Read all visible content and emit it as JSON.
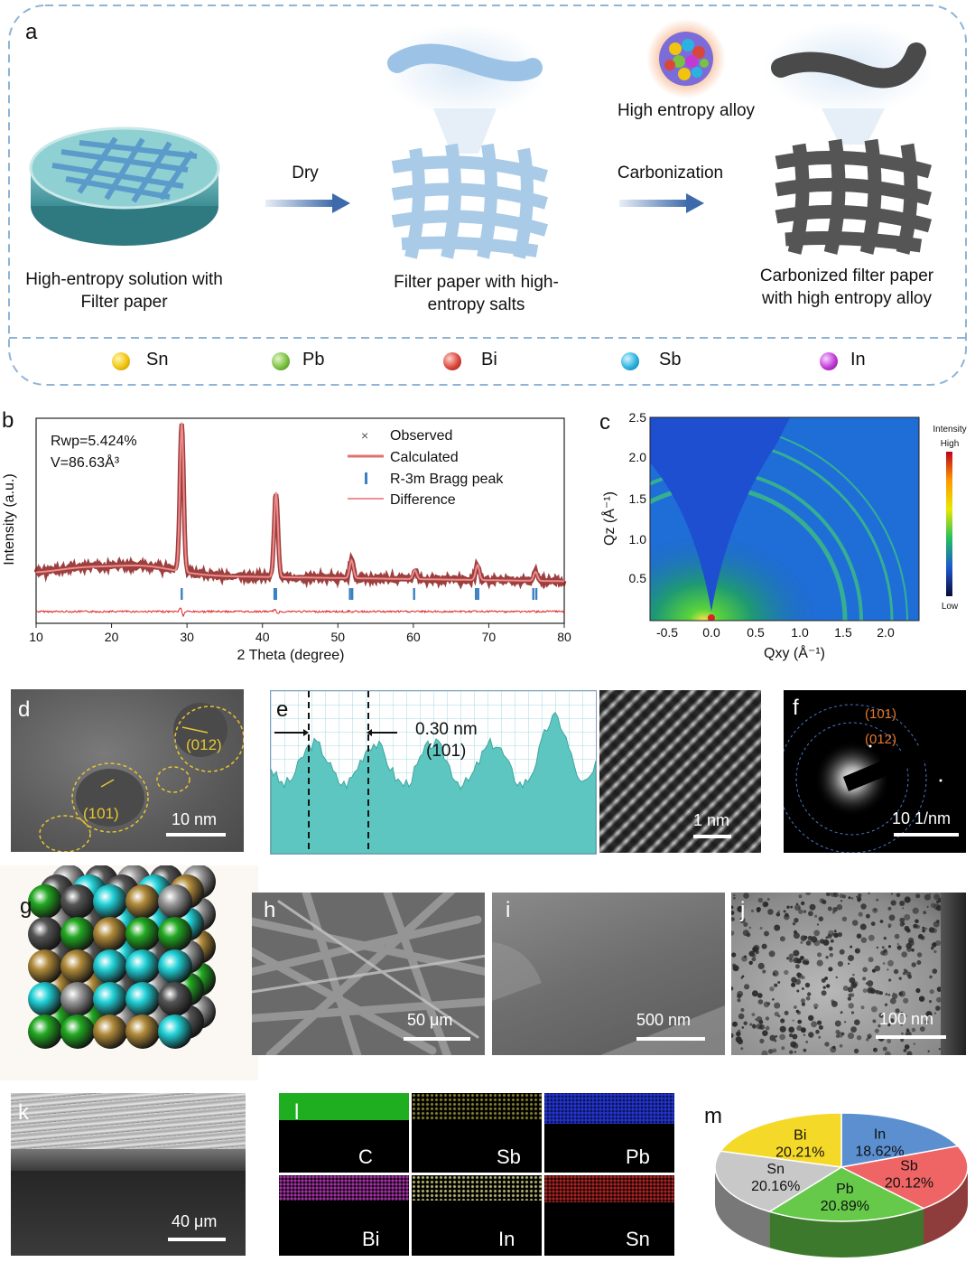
{
  "panel_labels": {
    "a": "a",
    "b": "b",
    "c": "c",
    "d": "d",
    "e": "e",
    "f": "f",
    "g": "g",
    "h": "h",
    "i": "i",
    "j": "j",
    "k": "k",
    "l": "l",
    "m": "m"
  },
  "schematic": {
    "step1_caption_1": "High-entropy solution with",
    "step1_caption_2": "Filter paper",
    "arrow1_label": "Dry",
    "step2_caption_1": "Filter paper with high-",
    "step2_caption_2": "entropy salts",
    "arrow2_label": "Carbonization",
    "hea_label": "High entropy alloy",
    "step3_caption_1": "Carbonized filter paper",
    "step3_caption_2": "with  high entropy alloy",
    "legend": [
      {
        "label": "Sn",
        "color": "#f1c40f"
      },
      {
        "label": "Pb",
        "color": "#7bc142"
      },
      {
        "label": "Bi",
        "color": "#d9463b"
      },
      {
        "label": "Sb",
        "color": "#2ab3e0"
      },
      {
        "label": "In",
        "color": "#c13ad6"
      }
    ]
  },
  "xrd": {
    "rwp": "Rwp=5.424%",
    "volume": "V=86.63Å³",
    "legend_observed": "Observed",
    "legend_calculated": "Calculated",
    "legend_bragg": "R-3m Bragg peak",
    "legend_difference": "Difference"
  },
  "chart_data": [
    {
      "type": "line",
      "panel": "b",
      "xlabel": "2 Theta (degree)",
      "ylabel": "Intensity (a.u.)",
      "xlim": [
        10,
        80
      ],
      "xticks": [
        "10",
        "20",
        "30",
        "40",
        "50",
        "60",
        "70",
        "80"
      ],
      "peaks": [
        {
          "x": 29.3,
          "height": 1.0
        },
        {
          "x": 41.8,
          "height": 0.57
        },
        {
          "x": 51.8,
          "height": 0.12
        },
        {
          "x": 60.2,
          "height": 0.06
        },
        {
          "x": 68.5,
          "height": 0.1
        },
        {
          "x": 76.2,
          "height": 0.06
        }
      ],
      "bragg_positions": [
        29.3,
        41.6,
        41.8,
        51.6,
        51.9,
        60.1,
        68.3,
        68.6,
        75.9,
        76.3
      ]
    },
    {
      "type": "heatmap",
      "panel": "c",
      "xlabel": "Qxy (Å⁻¹)",
      "ylabel": "Qz (Å⁻¹)",
      "xticks": [
        "-0.5",
        "0.0",
        "0.5",
        "1.0",
        "1.5",
        "2.0"
      ],
      "yticks": [
        "0.5",
        "1.0",
        "1.5",
        "2.0",
        "2.5"
      ],
      "xlim": [
        -0.7,
        2.4
      ],
      "ylim": [
        0,
        2.5
      ],
      "colorbar_title": "Intensity",
      "colorbar_high": "High",
      "colorbar_low": "Low"
    },
    {
      "type": "pie",
      "panel": "m",
      "slices": [
        {
          "label": "In",
          "value": 18.62,
          "display": "18.62%",
          "color": "#5b8fd0"
        },
        {
          "label": "Sb",
          "value": 20.12,
          "display": "20.12%",
          "color": "#ef6464"
        },
        {
          "label": "Pb",
          "value": 20.89,
          "display": "20.89%",
          "color": "#66c94a"
        },
        {
          "label": "Sn",
          "value": 20.16,
          "display": "20.16%",
          "color": "#c8c8c8"
        },
        {
          "label": "Bi",
          "value": 20.21,
          "display": "20.21%",
          "color": "#f5d928"
        }
      ]
    }
  ],
  "hrtem": {
    "plane1": "(012)",
    "plane2": "(101)",
    "scale_d": "10 nm",
    "spacing": "0.30 nm",
    "spacing_plane": "(101)",
    "scale_lattice": "1 nm",
    "saed_ring1": "(101)",
    "saed_ring2": "(012)",
    "scale_f": "10 1/nm"
  },
  "sem": {
    "scale_h": "50 μm",
    "scale_i": "500 nm",
    "scale_j": "100 nm",
    "scale_k": "40 μm"
  },
  "eds": [
    {
      "label": "C",
      "color": "#1fbf1f",
      "active": true
    },
    {
      "label": "Sb",
      "color": "#d8d04a",
      "active": false
    },
    {
      "label": "Pb",
      "color": "#2233cc",
      "active": false
    },
    {
      "label": "Bi",
      "color": "#c040c0",
      "active": false
    },
    {
      "label": "In",
      "color": "#dddd88",
      "active": false
    },
    {
      "label": "Sn",
      "color": "#cc2a2a",
      "active": false
    }
  ]
}
